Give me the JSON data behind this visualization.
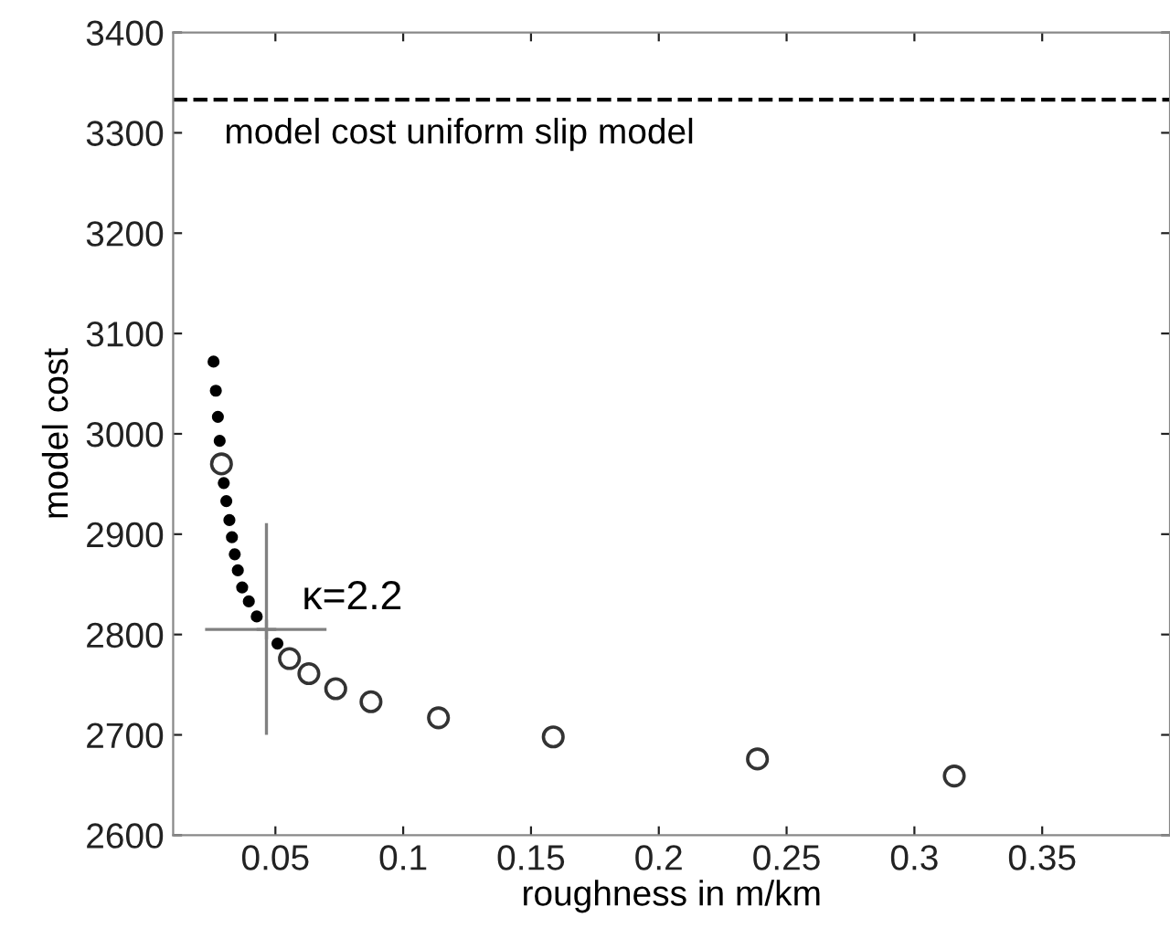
{
  "chart_data": {
    "type": "scatter",
    "xlabel": "roughness in m/km",
    "ylabel": "model cost",
    "xlim": [
      0.01,
      0.4
    ],
    "xticks": [
      0.05,
      0.1,
      0.15,
      0.2,
      0.25,
      0.3,
      0.35
    ],
    "ylim": [
      2600,
      3400
    ],
    "yticks": [
      2600,
      2700,
      2800,
      2900,
      3000,
      3100,
      3200,
      3300,
      3400
    ],
    "grid": false,
    "legend": false,
    "series": [
      {
        "color": "#000000",
        "marker": "circle",
        "x": [
          0.0258,
          0.0267,
          0.0275,
          0.0282,
          0.0298,
          0.0308,
          0.032,
          0.033,
          0.0341,
          0.0353,
          0.037,
          0.0396,
          0.0427,
          0.0508
        ],
        "values": [
          3072,
          3043,
          3017,
          2993,
          2951,
          2933,
          2914,
          2897,
          2880,
          2864,
          2847,
          2833,
          2818,
          2791
        ]
      },
      {
        "color": "#333333",
        "marker": "circle",
        "x": [
          0.0289,
          0.0555,
          0.0631,
          0.0736,
          0.0874,
          0.1138,
          0.1587,
          0.2386,
          0.3156
        ],
        "values": [
          2970,
          2776,
          2761,
          2746,
          2733,
          2717,
          2698,
          2676,
          2659
        ]
      },
      {
        "color": "#808080",
        "marker": "cross",
        "x": [
          0.0465
        ],
        "values": [
          2805
        ],
        "errors": [
          [
            2700,
            2911
          ]
        ],
        "xerrors": [
          [
            0.0225,
            0.07
          ]
        ]
      }
    ],
    "ref_lines": [
      {
        "axis": "y",
        "value": 3333,
        "label": "model cost uniform slip model",
        "color": "#000000",
        "line_style": "dashed"
      }
    ],
    "annotations": [
      {
        "text": "κ=2.2",
        "x": 0.0465,
        "y": 2805
      }
    ]
  }
}
